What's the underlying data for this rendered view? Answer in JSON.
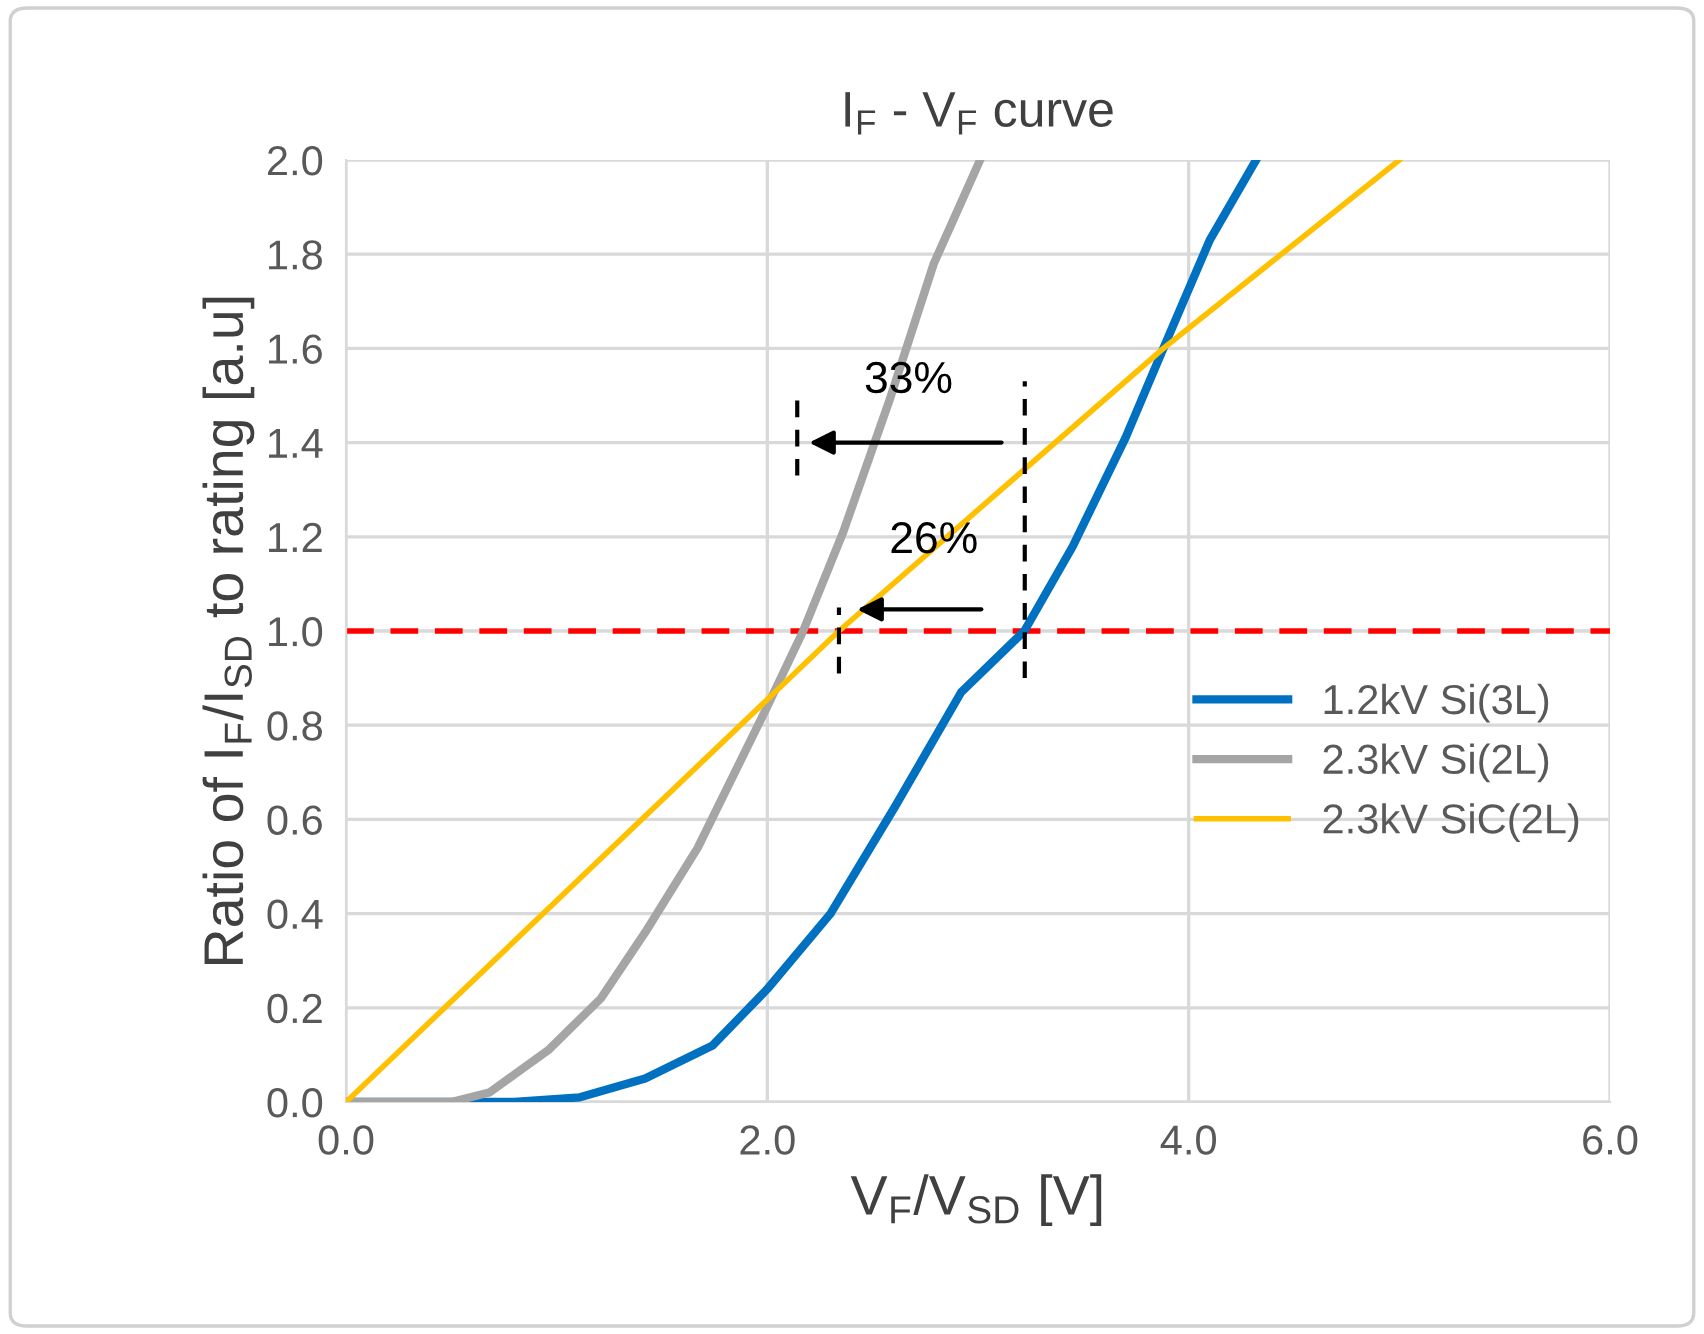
{
  "chart_data": {
    "type": "line",
    "title": "I$_{F}$ - V$_{F}$ curve",
    "xlabel": "V$_{F}$/V$_{SD}$ [V]",
    "ylabel": "Ratio of I$_{F}$/I$_{SD}$ to rating [a.u]",
    "series": [
      {
        "name": "1.2kV Si(3L)",
        "color": "#0070c0",
        "x": [
          0,
          0.8,
          1.11,
          1.42,
          1.74,
          2.0,
          2.3,
          2.61,
          2.92,
          3.22,
          3.45,
          3.7,
          3.88,
          4.1,
          4.32
        ],
        "values": [
          0,
          0,
          0.01,
          0.05,
          0.12,
          0.24,
          0.4,
          0.63,
          0.87,
          1.0,
          1.18,
          1.41,
          1.6,
          1.83,
          2.0
        ]
      },
      {
        "name": "2.3kV Si(2L)",
        "color": "#a5a5a5",
        "x": [
          0,
          0.5,
          0.68,
          0.96,
          1.21,
          1.42,
          1.67,
          2.0,
          2.17,
          2.36,
          2.58,
          2.79,
          3.01
        ],
        "values": [
          0,
          0,
          0.02,
          0.11,
          0.22,
          0.36,
          0.54,
          0.84,
          1.0,
          1.21,
          1.49,
          1.78,
          2.0
        ]
      },
      {
        "name": "2.3kV SiC(2L)",
        "color": "#ffc000",
        "x": [
          0,
          2.34,
          3.88,
          5.0
        ],
        "values": [
          0,
          1.0,
          1.6,
          2.0
        ]
      }
    ],
    "annotations": [
      "33%",
      "26%"
    ],
    "ref_lines": [
      {
        "axis": "y",
        "value": 1.0,
        "label": null,
        "color": "#ff0000",
        "line_style": "dashed"
      }
    ],
    "xlim": [
      0,
      6
    ],
    "xticks": [
      {
        "value": 0,
        "label": "0.0"
      },
      {
        "value": 2,
        "label": "2.0"
      },
      {
        "value": 4,
        "label": "4.0"
      },
      {
        "value": 6,
        "label": "6.0"
      }
    ],
    "ylim": [
      0,
      2
    ],
    "yticks": [
      {
        "value": 0,
        "label": "0.0"
      },
      {
        "value": 0.2,
        "label": "0.2"
      },
      {
        "value": 0.4,
        "label": "0.4"
      },
      {
        "value": 0.6,
        "label": "0.6"
      },
      {
        "value": 0.8,
        "label": "0.8"
      },
      {
        "value": 1.0,
        "label": "1.0"
      },
      {
        "value": 1.2,
        "label": "1.2"
      },
      {
        "value": 1.4,
        "label": "1.4"
      },
      {
        "value": 1.6,
        "label": "1.6"
      },
      {
        "value": 1.8,
        "label": "1.8"
      },
      {
        "value": 2.0,
        "label": "2.0"
      }
    ],
    "grid": true,
    "legend": "center right",
    "marker": "none",
    "line_style": "solid"
  }
}
